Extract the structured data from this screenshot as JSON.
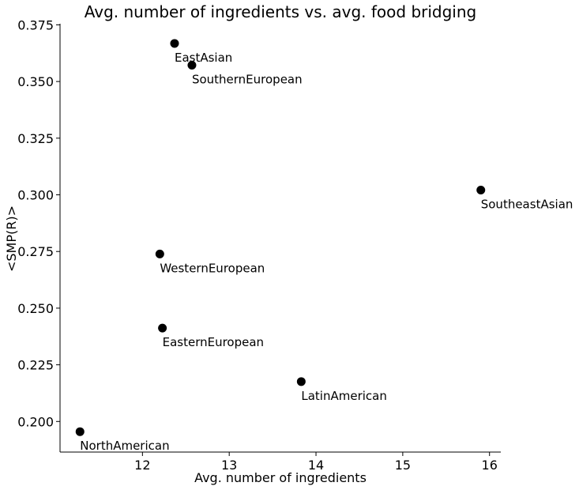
{
  "chart_data": {
    "type": "scatter",
    "title": "Avg. number of ingredients vs. avg. food bridging",
    "xlabel": "Avg. number of ingredients",
    "ylabel": "<SMP(R)>",
    "xlim": [
      11.05,
      16.13
    ],
    "ylim": [
      0.1865,
      0.3755
    ],
    "xticks": [
      12,
      13,
      14,
      15,
      16
    ],
    "yticks": [
      0.2,
      0.225,
      0.25,
      0.275,
      0.3,
      0.325,
      0.35,
      0.375
    ],
    "ytick_labels": [
      "0.200",
      "0.225",
      "0.250",
      "0.275",
      "0.300",
      "0.325",
      "0.350",
      "0.375"
    ],
    "grid": false,
    "point_color": "#000000",
    "points": [
      {
        "label": "EastAsian",
        "x": 12.37,
        "y": 0.3668
      },
      {
        "label": "SouthernEuropean",
        "x": 12.57,
        "y": 0.3572
      },
      {
        "label": "SoutheastAsian",
        "x": 15.9,
        "y": 0.3021
      },
      {
        "label": "WesternEuropean",
        "x": 12.2,
        "y": 0.2739
      },
      {
        "label": "EasternEuropean",
        "x": 12.23,
        "y": 0.2412
      },
      {
        "label": "LatinAmerican",
        "x": 13.83,
        "y": 0.2176
      },
      {
        "label": "NorthAmerican",
        "x": 11.28,
        "y": 0.1955
      }
    ]
  }
}
